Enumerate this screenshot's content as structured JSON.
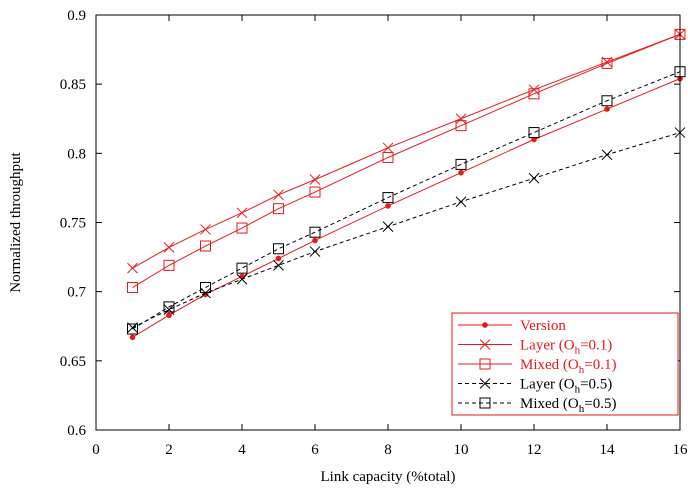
{
  "chart_data": {
    "type": "line",
    "title": "",
    "xlabel": "Link capacity (%total)",
    "ylabel": "Normalized throughput",
    "xlim": [
      0,
      16
    ],
    "ylim": [
      0.6,
      0.9
    ],
    "xticks": [
      0,
      2,
      4,
      6,
      8,
      10,
      12,
      14,
      16
    ],
    "yticks": [
      0.6,
      0.65,
      0.7,
      0.75,
      0.8,
      0.85,
      0.9
    ],
    "xtick_labels": [
      "0",
      "2",
      "4",
      "6",
      "8",
      "10",
      "12",
      "14",
      "16"
    ],
    "ytick_labels": [
      "0.6",
      "0.65",
      "0.7",
      "0.75",
      "0.8",
      "0.85",
      "0.9"
    ],
    "grid": false,
    "legend_position": "bottom-right",
    "x": [
      1,
      2,
      3,
      4,
      5,
      6,
      8,
      10,
      12,
      14,
      16
    ],
    "series": [
      {
        "name": "Version",
        "color": "#e8191a",
        "dash": "solid",
        "marker": "dot",
        "values": [
          0.667,
          0.683,
          0.698,
          0.711,
          0.724,
          0.737,
          0.762,
          0.786,
          0.81,
          0.832,
          0.854
        ]
      },
      {
        "name": "Layer (Oh=0.1)",
        "label_main": "Layer (O",
        "label_sub": "h",
        "label_tail": "=0.1)",
        "color": "#e8191a",
        "dash": "solid",
        "marker": "x",
        "values": [
          0.717,
          0.732,
          0.745,
          0.757,
          0.77,
          0.781,
          0.804,
          0.825,
          0.846,
          0.866,
          0.886
        ]
      },
      {
        "name": "Mixed (Oh=0.1)",
        "label_main": "Mixed (O",
        "label_sub": "h",
        "label_tail": "=0.1)",
        "color": "#e8191a",
        "dash": "solid",
        "marker": "square",
        "values": [
          0.703,
          0.719,
          0.733,
          0.746,
          0.76,
          0.772,
          0.797,
          0.82,
          0.843,
          0.865,
          0.886
        ]
      },
      {
        "name": "Layer (Oh=0.5)",
        "label_main": "Layer (O",
        "label_sub": "h",
        "label_tail": "=0.5)",
        "color": "#000000",
        "dash": "dashed",
        "marker": "x",
        "values": [
          0.674,
          0.687,
          0.699,
          0.709,
          0.719,
          0.729,
          0.747,
          0.765,
          0.782,
          0.799,
          0.815
        ]
      },
      {
        "name": "Mixed (Oh=0.5)",
        "label_main": "Mixed (O",
        "label_sub": "h",
        "label_tail": "=0.5)",
        "color": "#000000",
        "dash": "dashed",
        "marker": "square",
        "values": [
          0.673,
          0.689,
          0.703,
          0.717,
          0.731,
          0.743,
          0.768,
          0.792,
          0.815,
          0.838,
          0.859
        ]
      }
    ]
  }
}
